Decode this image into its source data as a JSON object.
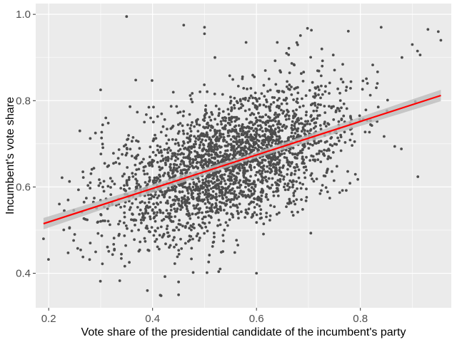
{
  "chart_data": {
    "type": "scatter",
    "title": "",
    "xlabel": "Vote share of the presidential candidate of the incumbent's party",
    "ylabel": "Incumbent's vote share",
    "xlim": [
      0.175,
      0.975
    ],
    "ylim": [
      0.32,
      1.025
    ],
    "x_ticks": [
      0.2,
      0.4,
      0.6,
      0.8
    ],
    "x_tick_labels": [
      "0.2",
      "0.4",
      "0.6",
      "0.8"
    ],
    "y_ticks": [
      0.4,
      0.6,
      0.8,
      1.0
    ],
    "y_tick_labels": [
      "0.4",
      "0.6",
      "0.8",
      "1.0"
    ],
    "grid": true,
    "legend": "none",
    "series": [
      {
        "point_color": "#4d4d4d",
        "cloud": {
          "n": 2600,
          "x_mean": 0.545,
          "x_sd": 0.115,
          "slope": 0.39,
          "residual_sd": 0.075,
          "x_min": 0.19,
          "x_max": 0.955
        },
        "extra_points": [
          [
            0.19,
            0.48
          ],
          [
            0.35,
            0.995
          ],
          [
            0.46,
            0.975
          ],
          [
            0.5,
            0.97
          ],
          [
            0.5,
            0.955
          ],
          [
            0.45,
            0.35
          ],
          [
            0.39,
            0.36
          ],
          [
            0.93,
            0.965
          ],
          [
            0.95,
            0.96
          ],
          [
            0.955,
            0.94
          ],
          [
            0.3,
            0.825
          ],
          [
            0.84,
            0.97
          ],
          [
            0.6,
            0.4
          ],
          [
            0.52,
            0.9
          ],
          [
            0.58,
            0.935
          ],
          [
            0.64,
            0.935
          ],
          [
            0.26,
            0.73
          ],
          [
            0.29,
            0.725
          ],
          [
            0.23,
            0.545
          ],
          [
            0.28,
            0.47
          ],
          [
            0.25,
            0.49
          ],
          [
            0.31,
            0.76
          ],
          [
            0.28,
            0.61
          ],
          [
            0.45,
            0.38
          ],
          [
            0.53,
            0.41
          ],
          [
            0.88,
            0.9
          ],
          [
            0.9,
            0.93
          ],
          [
            0.91,
            0.915
          ]
        ]
      }
    ],
    "fit": {
      "type": "linear",
      "color": "#ff0000",
      "band_color": "#bdbdbd",
      "x_range": [
        0.19,
        0.955
      ],
      "y_at_start": 0.515,
      "y_at_end": 0.812,
      "ci_halfwidth": 0.012
    }
  },
  "colors": {
    "panel_background": "#ebebeb",
    "grid_major": "#ffffff",
    "tick_text": "#4d4d4d"
  }
}
